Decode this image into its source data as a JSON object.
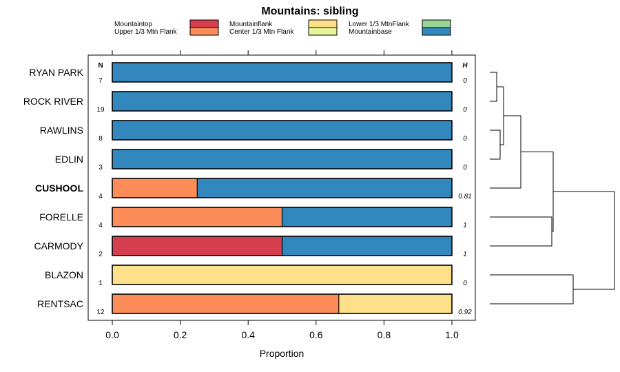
{
  "chart_data": {
    "type": "bar",
    "orientation": "horizontal",
    "stacked": true,
    "title": "Mountains: sibling",
    "xlabel": "Proportion",
    "xlim": [
      0,
      1
    ],
    "xticks": [
      "0.0",
      "0.2",
      "0.4",
      "0.6",
      "0.8",
      "1.0"
    ],
    "n_header": "N",
    "h_header": "H",
    "categories": [
      "RYAN PARK",
      "ROCK RIVER",
      "RAWLINS",
      "EDLIN",
      "CUSHOOL",
      "FORELLE",
      "CARMODY",
      "BLAZON",
      "RENTSAC"
    ],
    "bold_category": "CUSHOOL",
    "n": [
      "7",
      "19",
      "8",
      "3",
      "4",
      "4",
      "2",
      "1",
      "12"
    ],
    "h": [
      "0",
      "0",
      "0",
      "0",
      "0.81",
      "1",
      "1",
      "0",
      "0.92"
    ],
    "legend": [
      {
        "name": "Mountaintop",
        "color": "#d53e4f"
      },
      {
        "name": "Upper 1/3 Mtn Flank",
        "color": "#fc8d59"
      },
      {
        "name": "Mountainflank",
        "color": "#fee08b"
      },
      {
        "name": "Center 1/3 Mtn Flank",
        "color": "#e6f598"
      },
      {
        "name": "Lower 1/3 MtnFlank",
        "color": "#99d594"
      },
      {
        "name": "Mountainbase",
        "color": "#3288bd"
      }
    ],
    "series": [
      {
        "name": "Mountaintop",
        "values": [
          0,
          0,
          0,
          0,
          0,
          0,
          0.5,
          0,
          0
        ]
      },
      {
        "name": "Upper 1/3 Mtn Flank",
        "values": [
          0,
          0,
          0,
          0,
          0.25,
          0.5,
          0,
          0,
          0.667
        ]
      },
      {
        "name": "Mountainflank",
        "values": [
          0,
          0,
          0,
          0,
          0,
          0,
          0,
          1,
          0.333
        ]
      },
      {
        "name": "Center 1/3 Mtn Flank",
        "values": [
          0,
          0,
          0,
          0,
          0,
          0,
          0,
          0,
          0
        ]
      },
      {
        "name": "Lower 1/3 MtnFlank",
        "values": [
          0,
          0,
          0,
          0,
          0,
          0,
          0,
          0,
          0
        ]
      },
      {
        "name": "Mountainbase",
        "values": [
          1,
          1,
          1,
          1,
          0.75,
          0.5,
          0.5,
          0,
          0
        ]
      }
    ],
    "dendrogram": true
  }
}
